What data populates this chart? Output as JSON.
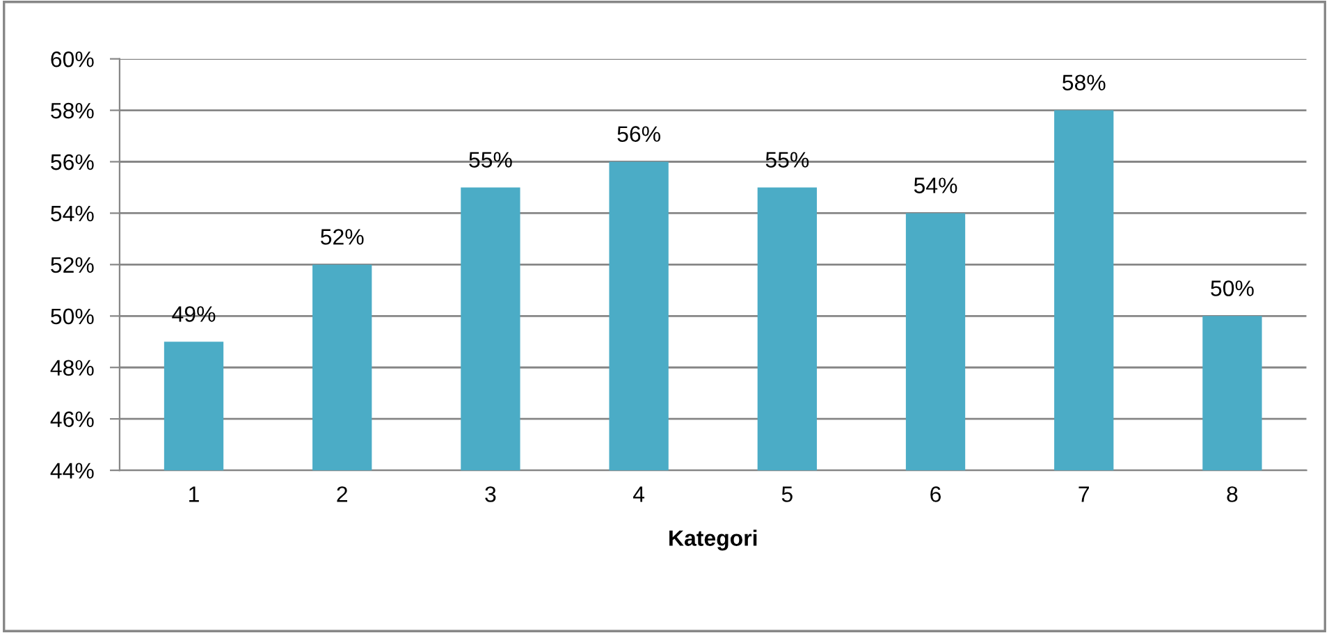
{
  "chart_data": {
    "type": "bar",
    "xlabel": "Kategori",
    "categories": [
      "1",
      "2",
      "3",
      "4",
      "5",
      "6",
      "7",
      "8"
    ],
    "values": [
      49,
      52,
      55,
      56,
      55,
      54,
      58,
      50
    ],
    "value_labels": [
      "49%",
      "52%",
      "55%",
      "56%",
      "55%",
      "54%",
      "58%",
      "50%"
    ],
    "color": "#4bacc6",
    "ylim": [
      44,
      60
    ],
    "yticks": [
      {
        "value": 44,
        "label": "44%"
      },
      {
        "value": 46,
        "label": "46%"
      },
      {
        "value": 48,
        "label": "48%"
      },
      {
        "value": 50,
        "label": "50%"
      },
      {
        "value": 52,
        "label": "52%"
      },
      {
        "value": 54,
        "label": "54%"
      },
      {
        "value": 56,
        "label": "56%"
      },
      {
        "value": 58,
        "label": "58%"
      },
      {
        "value": 60,
        "label": "60%"
      }
    ],
    "grid": "y",
    "legend": false
  }
}
